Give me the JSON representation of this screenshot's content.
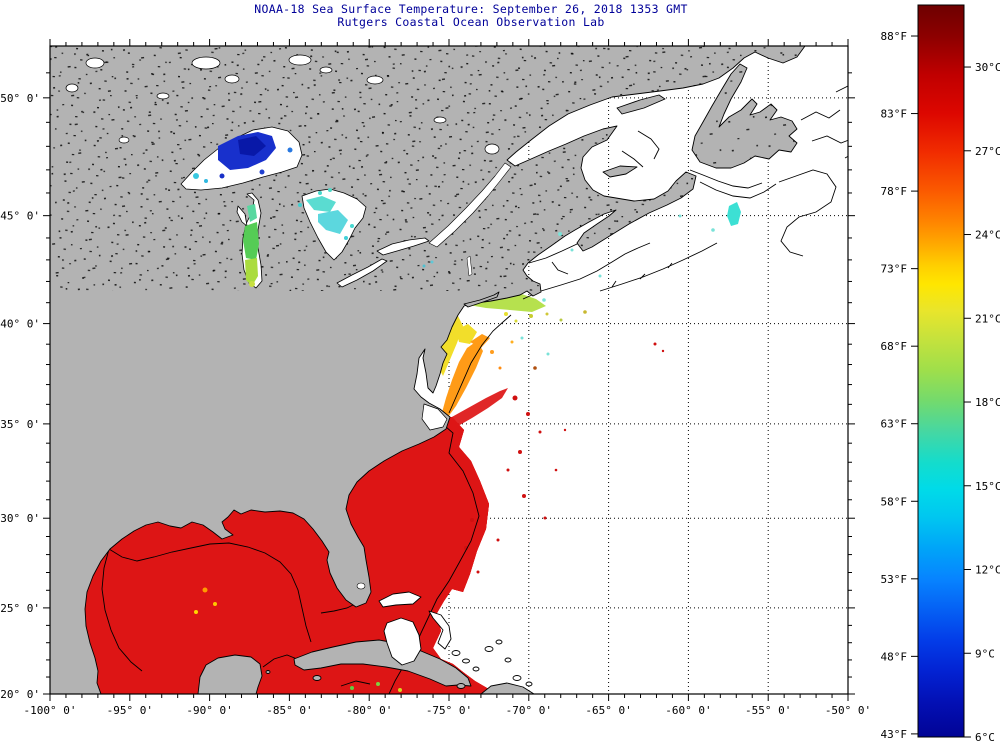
{
  "title": {
    "line1": "NOAA-18 Sea Surface Temperature:  September 26, 2018 1353 GMT",
    "line2": "Rutgers Coastal Ocean Observation Lab",
    "color": "#000099"
  },
  "map": {
    "projection": "mercator",
    "lon_range": [
      -100,
      -50
    ],
    "lat_range": [
      20,
      52.05
    ],
    "gridline_style": "dotted",
    "land_color": "#b3b3b3",
    "no_data_color": "#ffffff",
    "x_axis": {
      "major": [
        {
          "lon": -100,
          "label": "-100° 0'"
        },
        {
          "lon": -95,
          "label": "-95° 0'"
        },
        {
          "lon": -90,
          "label": "-90° 0'"
        },
        {
          "lon": -85,
          "label": "-85° 0'"
        },
        {
          "lon": -80,
          "label": "-80° 0'"
        },
        {
          "lon": -75,
          "label": "-75° 0'"
        },
        {
          "lon": -70,
          "label": "-70° 0'"
        },
        {
          "lon": -65,
          "label": "-65° 0'"
        },
        {
          "lon": -60,
          "label": "-60° 0'"
        },
        {
          "lon": -55,
          "label": "-55° 0'"
        },
        {
          "lon": -50,
          "label": "-50° 0'"
        }
      ],
      "minor_step_deg": 1
    },
    "y_axis": {
      "major": [
        {
          "lat": 50,
          "label": "50° 0'"
        },
        {
          "lat": 45,
          "label": "45° 0'"
        },
        {
          "lat": 40,
          "label": "40° 0'"
        },
        {
          "lat": 35,
          "label": "35° 0'"
        },
        {
          "lat": 30,
          "label": "30° 0'"
        },
        {
          "lat": 25,
          "label": "25° 0'"
        },
        {
          "lat": 20,
          "label": "20° 0'"
        }
      ],
      "minor_step_deg": 1
    }
  },
  "colorbar": {
    "orientation": "vertical",
    "range_f": [
      43,
      90
    ],
    "range_c": [
      6,
      32
    ],
    "fahrenheit_ticks": [
      {
        "value": 88,
        "label": "88°F"
      },
      {
        "value": 83,
        "label": "83°F"
      },
      {
        "value": 78,
        "label": "78°F"
      },
      {
        "value": 73,
        "label": "73°F"
      },
      {
        "value": 68,
        "label": "68°F"
      },
      {
        "value": 63,
        "label": "63°F"
      },
      {
        "value": 58,
        "label": "58°F"
      },
      {
        "value": 53,
        "label": "53°F"
      },
      {
        "value": 48,
        "label": "48°F"
      },
      {
        "value": 43,
        "label": "43°F"
      }
    ],
    "celsius_ticks": [
      {
        "value": 30,
        "label": "30°C"
      },
      {
        "value": 27,
        "label": "27°C"
      },
      {
        "value": 24,
        "label": "24°C"
      },
      {
        "value": 21,
        "label": "21°C"
      },
      {
        "value": 18,
        "label": "18°C"
      },
      {
        "value": 15,
        "label": "15°C"
      },
      {
        "value": 12,
        "label": "12°C"
      },
      {
        "value": 9,
        "label": "9°C"
      },
      {
        "value": 6,
        "label": "6°C"
      }
    ],
    "stops": [
      [
        90,
        "#6e0000"
      ],
      [
        88,
        "#8c0000"
      ],
      [
        85.5,
        "#c00000"
      ],
      [
        83,
        "#dd0700"
      ],
      [
        80.5,
        "#f12c00"
      ],
      [
        78,
        "#fb5a00"
      ],
      [
        76,
        "#ff8500"
      ],
      [
        74.5,
        "#ffab00"
      ],
      [
        73.2,
        "#ffcf00"
      ],
      [
        72,
        "#ffe600"
      ],
      [
        70.3,
        "#e9e52b"
      ],
      [
        68.5,
        "#c6e23c"
      ],
      [
        66.5,
        "#a0df4a"
      ],
      [
        64.5,
        "#74da6c"
      ],
      [
        62.5,
        "#46d7a2"
      ],
      [
        60.5,
        "#14dccc"
      ],
      [
        58.8,
        "#00dbe8"
      ],
      [
        57,
        "#00c7f0"
      ],
      [
        55,
        "#00a5f8"
      ],
      [
        53,
        "#0784ff"
      ],
      [
        51,
        "#0560f4"
      ],
      [
        49,
        "#033ce8"
      ],
      [
        47,
        "#0322d2"
      ],
      [
        45,
        "#0310b4"
      ],
      [
        43.5,
        "#02079f"
      ],
      [
        42.8,
        "#010495"
      ]
    ]
  },
  "palette_notes": {
    "warm_water": "#dd1515",
    "very_warm_water": "#8c0303",
    "shelf_orange": "#ff9b17",
    "shelf_yellow": "#f2de2a",
    "shelf_yellow_green": "#b6e14e",
    "cold_lake_blue": "#1830cc",
    "cool_cyan": "#3ce0d4"
  }
}
